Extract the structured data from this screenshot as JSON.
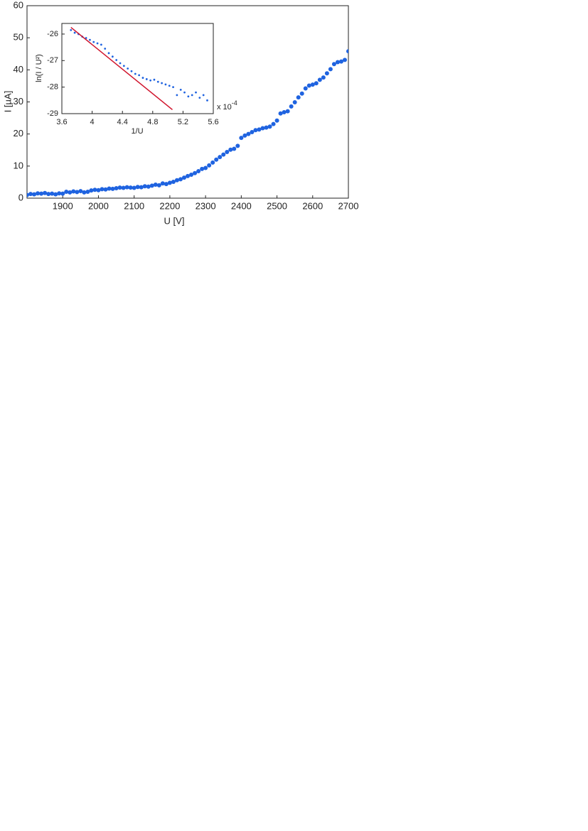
{
  "chart_data": [
    {
      "type": "scatter",
      "xlabel": "U [V]",
      "ylabel": "I [µA]",
      "xlim": [
        1800,
        2700
      ],
      "ylim": [
        0,
        60
      ],
      "xticks": [
        1900,
        2000,
        2100,
        2200,
        2300,
        2400,
        2500,
        2600,
        2700
      ],
      "yticks": [
        0,
        10,
        20,
        30,
        40,
        50,
        60
      ],
      "series": [
        {
          "color": "#1f63e0",
          "x": [
            1800,
            1810,
            1820,
            1830,
            1840,
            1850,
            1860,
            1870,
            1880,
            1890,
            1900,
            1910,
            1920,
            1930,
            1940,
            1950,
            1960,
            1970,
            1980,
            1990,
            2000,
            2010,
            2020,
            2030,
            2040,
            2050,
            2060,
            2070,
            2080,
            2090,
            2100,
            2110,
            2120,
            2130,
            2140,
            2150,
            2160,
            2170,
            2180,
            2190,
            2200,
            2210,
            2220,
            2230,
            2240,
            2250,
            2260,
            2270,
            2280,
            2290,
            2300,
            2310,
            2320,
            2330,
            2340,
            2350,
            2360,
            2370,
            2380,
            2390,
            2400,
            2410,
            2420,
            2430,
            2440,
            2450,
            2460,
            2470,
            2480,
            2490,
            2500,
            2510,
            2520,
            2530,
            2540,
            2550,
            2560,
            2570,
            2580,
            2590,
            2600,
            2610,
            2620,
            2630,
            2640,
            2650,
            2660,
            2670,
            2680,
            2690,
            2700
          ],
          "values": [
            1.0,
            1.3,
            1.2,
            1.5,
            1.4,
            1.6,
            1.3,
            1.4,
            1.2,
            1.5,
            1.4,
            2.0,
            1.8,
            2.1,
            1.9,
            2.2,
            1.8,
            2.0,
            2.4,
            2.6,
            2.5,
            2.8,
            2.7,
            3.0,
            2.9,
            3.1,
            3.3,
            3.2,
            3.4,
            3.3,
            3.2,
            3.5,
            3.4,
            3.7,
            3.6,
            3.9,
            4.2,
            4.0,
            4.6,
            4.4,
            4.8,
            5.1,
            5.6,
            5.9,
            6.4,
            6.9,
            7.3,
            7.8,
            8.4,
            9.1,
            9.4,
            10.2,
            11.1,
            12.0,
            12.8,
            13.6,
            14.4,
            15.1,
            15.4,
            16.3,
            18.8,
            19.5,
            20.0,
            20.6,
            21.2,
            21.4,
            21.8,
            22.0,
            22.3,
            23.1,
            24.2,
            26.4,
            26.8,
            27.1,
            28.6,
            29.9,
            31.4,
            32.6,
            34.2,
            35.1,
            35.4,
            35.8,
            36.9,
            37.6,
            38.9,
            40.2,
            41.8,
            42.4,
            42.6,
            43.1,
            45.8
          ]
        }
      ]
    },
    {
      "type": "scatter",
      "xlabel": "1/U",
      "ylabel": "ln(I / U²)",
      "x_multiplier": {
        "base": "x 10",
        "exponent": "-4"
      },
      "xlim": [
        3.6,
        5.6
      ],
      "ylim": [
        -29,
        -25.6
      ],
      "xticks": [
        3.6,
        4,
        4.4,
        4.8,
        5.2,
        5.6
      ],
      "yticks": [
        -29,
        -28,
        -27,
        -26
      ],
      "series": [
        {
          "color": "#1f63e0",
          "x": [
            3.72,
            3.77,
            3.82,
            3.87,
            3.92,
            3.97,
            4.02,
            4.07,
            4.12,
            4.17,
            4.22,
            4.27,
            4.32,
            4.37,
            4.42,
            4.47,
            4.52,
            4.57,
            4.62,
            4.67,
            4.72,
            4.77,
            4.82,
            4.87,
            4.92,
            4.97,
            5.02,
            5.07,
            5.12,
            5.17,
            5.22,
            5.27,
            5.32,
            5.37,
            5.42,
            5.47,
            5.52
          ],
          "values": [
            -25.85,
            -25.95,
            -26.0,
            -26.1,
            -26.15,
            -26.22,
            -26.3,
            -26.35,
            -26.4,
            -26.55,
            -26.72,
            -26.85,
            -26.98,
            -27.1,
            -27.2,
            -27.3,
            -27.4,
            -27.5,
            -27.55,
            -27.65,
            -27.7,
            -27.75,
            -27.72,
            -27.8,
            -27.85,
            -27.9,
            -27.95,
            -28.0,
            -28.3,
            -28.1,
            -28.2,
            -28.35,
            -28.3,
            -28.2,
            -28.4,
            -28.3,
            -28.5
          ]
        },
        {
          "color": "#d0142c",
          "style": "line",
          "x": [
            3.72,
            5.06
          ],
          "values": [
            -25.75,
            -28.85
          ]
        }
      ]
    }
  ]
}
